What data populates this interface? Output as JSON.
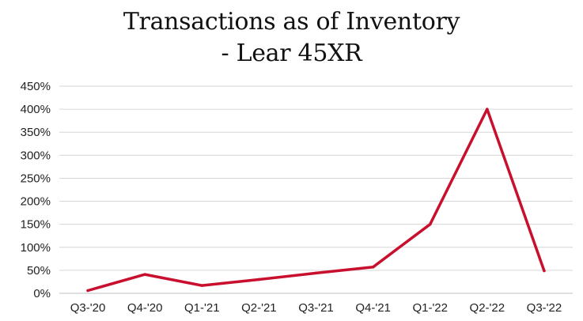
{
  "chart_data": {
    "type": "line",
    "title_lines": [
      "Transactions as of Inventory",
      "- Lear 45XR"
    ],
    "xlabel": "",
    "ylabel": "",
    "categories": [
      "Q3-'20",
      "Q4-'20",
      "Q1-'21",
      "Q2-'21",
      "Q3-'21",
      "Q4-'21",
      "Q1-'22",
      "Q2-'22",
      "Q3-'22"
    ],
    "series": [
      {
        "color": "#c8102e",
        "values": [
          6,
          41,
          17,
          30,
          44,
          57,
          150,
          400,
          49
        ]
      }
    ],
    "ylim": [
      0,
      450
    ],
    "yticks": [
      0,
      50,
      100,
      150,
      200,
      250,
      300,
      350,
      400,
      450
    ],
    "ytick_labels": [
      "0%",
      "50%",
      "100%",
      "150%",
      "200%",
      "250%",
      "300%",
      "350%",
      "400%",
      "450%"
    ],
    "grid": true,
    "legend": "none"
  }
}
